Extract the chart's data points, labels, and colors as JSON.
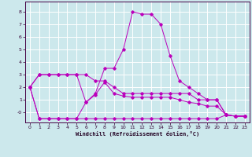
{
  "xlabel": "Windchill (Refroidissement éolien,°C)",
  "background_color": "#cce8ec",
  "grid_color": "#ffffff",
  "line_color": "#bb00bb",
  "xlim": [
    -0.5,
    23.5
  ],
  "ylim": [
    -0.8,
    8.8
  ],
  "xticks": [
    0,
    1,
    2,
    3,
    4,
    5,
    6,
    7,
    8,
    9,
    10,
    11,
    12,
    13,
    14,
    15,
    16,
    17,
    18,
    19,
    20,
    21,
    22,
    23
  ],
  "yticks": [
    0,
    1,
    2,
    3,
    4,
    5,
    6,
    7,
    8
  ],
  "ytick_labels": [
    "-0",
    "1",
    "2",
    "3",
    "4",
    "5",
    "6",
    "7",
    "8"
  ],
  "series": [
    {
      "x": [
        0,
        1,
        2,
        3,
        4,
        5,
        6,
        7,
        8,
        9,
        10,
        11,
        12,
        13,
        14,
        15,
        16,
        17,
        18,
        19,
        20,
        21,
        22,
        23
      ],
      "y": [
        2.0,
        3.0,
        3.0,
        3.0,
        3.0,
        3.0,
        0.8,
        1.5,
        3.5,
        3.5,
        5.0,
        8.0,
        7.8,
        7.8,
        7.0,
        4.5,
        2.5,
        2.0,
        1.5,
        1.0,
        1.0,
        -0.2,
        -0.3,
        -0.3
      ]
    },
    {
      "x": [
        0,
        1,
        2,
        3,
        4,
        5,
        6,
        7,
        8,
        9,
        10,
        11,
        12,
        13,
        14,
        15,
        16,
        17,
        18,
        19,
        20,
        21,
        22,
        23
      ],
      "y": [
        2.0,
        3.0,
        3.0,
        3.0,
        3.0,
        3.0,
        3.0,
        2.5,
        2.5,
        2.0,
        1.5,
        1.5,
        1.5,
        1.5,
        1.5,
        1.5,
        1.5,
        1.5,
        1.0,
        1.0,
        1.0,
        -0.2,
        -0.3,
        -0.3
      ]
    },
    {
      "x": [
        0,
        1,
        2,
        3,
        4,
        5,
        6,
        7,
        8,
        9,
        10,
        11,
        12,
        13,
        14,
        15,
        16,
        17,
        18,
        19,
        20,
        21,
        22,
        23
      ],
      "y": [
        2.0,
        -0.5,
        -0.5,
        -0.5,
        -0.5,
        -0.5,
        0.8,
        1.4,
        2.4,
        1.5,
        1.3,
        1.2,
        1.2,
        1.2,
        1.2,
        1.2,
        1.0,
        0.8,
        0.7,
        0.5,
        0.5,
        -0.2,
        -0.3,
        -0.3
      ]
    },
    {
      "x": [
        0,
        1,
        2,
        3,
        4,
        5,
        6,
        7,
        8,
        9,
        10,
        11,
        12,
        13,
        14,
        15,
        16,
        17,
        18,
        19,
        20,
        21,
        22,
        23
      ],
      "y": [
        2.0,
        -0.5,
        -0.5,
        -0.5,
        -0.5,
        -0.5,
        -0.5,
        -0.5,
        -0.5,
        -0.5,
        -0.5,
        -0.5,
        -0.5,
        -0.5,
        -0.5,
        -0.5,
        -0.5,
        -0.5,
        -0.5,
        -0.5,
        -0.5,
        -0.2,
        -0.3,
        -0.3
      ]
    }
  ]
}
